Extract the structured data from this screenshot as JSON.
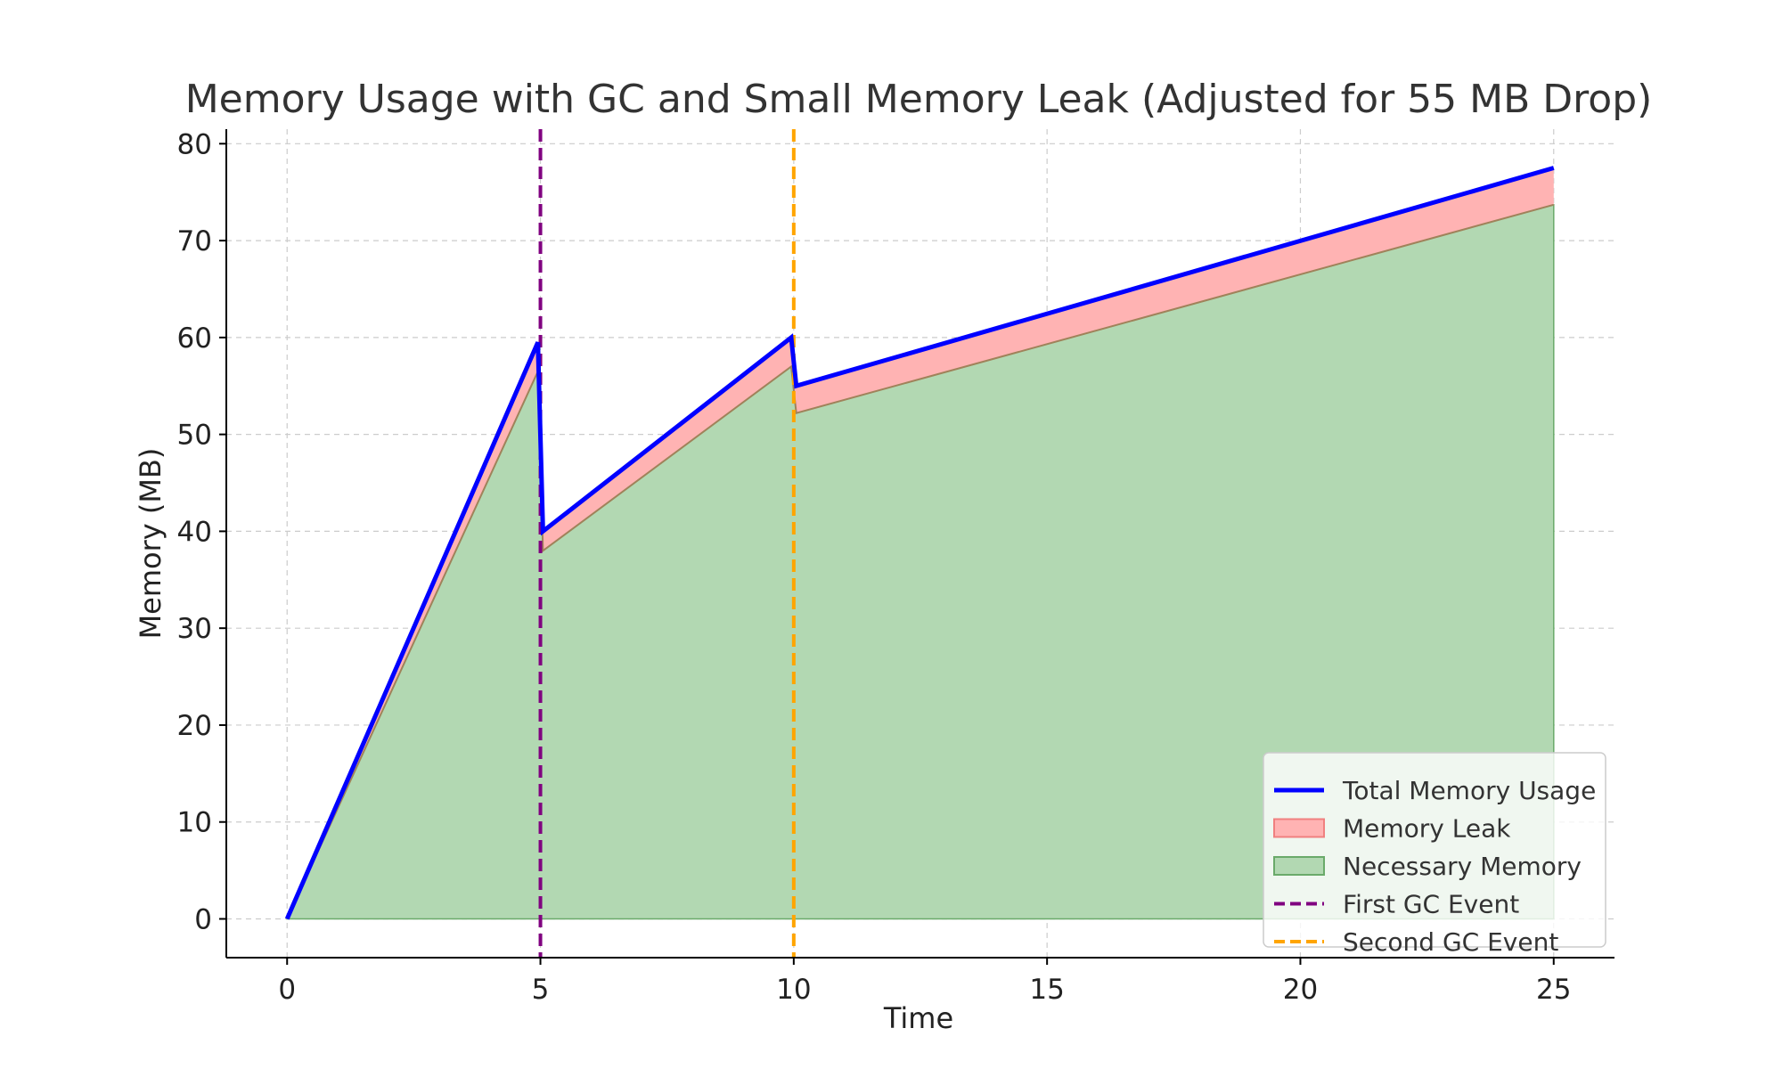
{
  "chart_data": {
    "type": "area",
    "title": "Memory Usage with GC and Small Memory Leak (Adjusted for 55 MB Drop)",
    "xlabel": "Time",
    "ylabel": "Memory (MB)",
    "xlim": [
      -1.2,
      26.2
    ],
    "ylim": [
      -4,
      81.5
    ],
    "xticks": [
      0,
      5,
      10,
      15,
      20,
      25
    ],
    "yticks": [
      0,
      10,
      20,
      30,
      40,
      50,
      60,
      70,
      80
    ],
    "grid": true,
    "legend_position": "lower-right",
    "series": [
      {
        "name": "Total Memory Usage",
        "kind": "line",
        "color": "#0000ff",
        "points": [
          [
            0,
            0
          ],
          [
            4.95,
            59.5
          ],
          [
            5.05,
            40
          ],
          [
            9.95,
            60
          ],
          [
            10.05,
            55
          ],
          [
            25,
            77.5
          ]
        ]
      },
      {
        "name": "Memory Leak",
        "kind": "band",
        "color": "#ffb3b3",
        "edge_color": "#f08080",
        "upper": [
          [
            0,
            0
          ],
          [
            4.95,
            59.5
          ],
          [
            5.05,
            40
          ],
          [
            9.95,
            60
          ],
          [
            10.05,
            55
          ],
          [
            25,
            77.5
          ]
        ],
        "lower": [
          [
            0,
            0
          ],
          [
            4.95,
            56.5
          ],
          [
            5.05,
            38
          ],
          [
            9.95,
            57
          ],
          [
            10.05,
            52.2
          ],
          [
            25,
            73.7
          ]
        ]
      },
      {
        "name": "Necessary Memory",
        "kind": "fill",
        "color": "#b2d8b2",
        "edge_color": "#6aaa6a",
        "points": [
          [
            0,
            0
          ],
          [
            4.95,
            56.5
          ],
          [
            5.05,
            38
          ],
          [
            9.95,
            57
          ],
          [
            10.05,
            52.2
          ],
          [
            25,
            73.7
          ]
        ]
      }
    ],
    "vlines": [
      {
        "name": "First GC Event",
        "x": 5,
        "color": "#800080"
      },
      {
        "name": "Second GC Event",
        "x": 10,
        "color": "#ffa500"
      }
    ]
  }
}
